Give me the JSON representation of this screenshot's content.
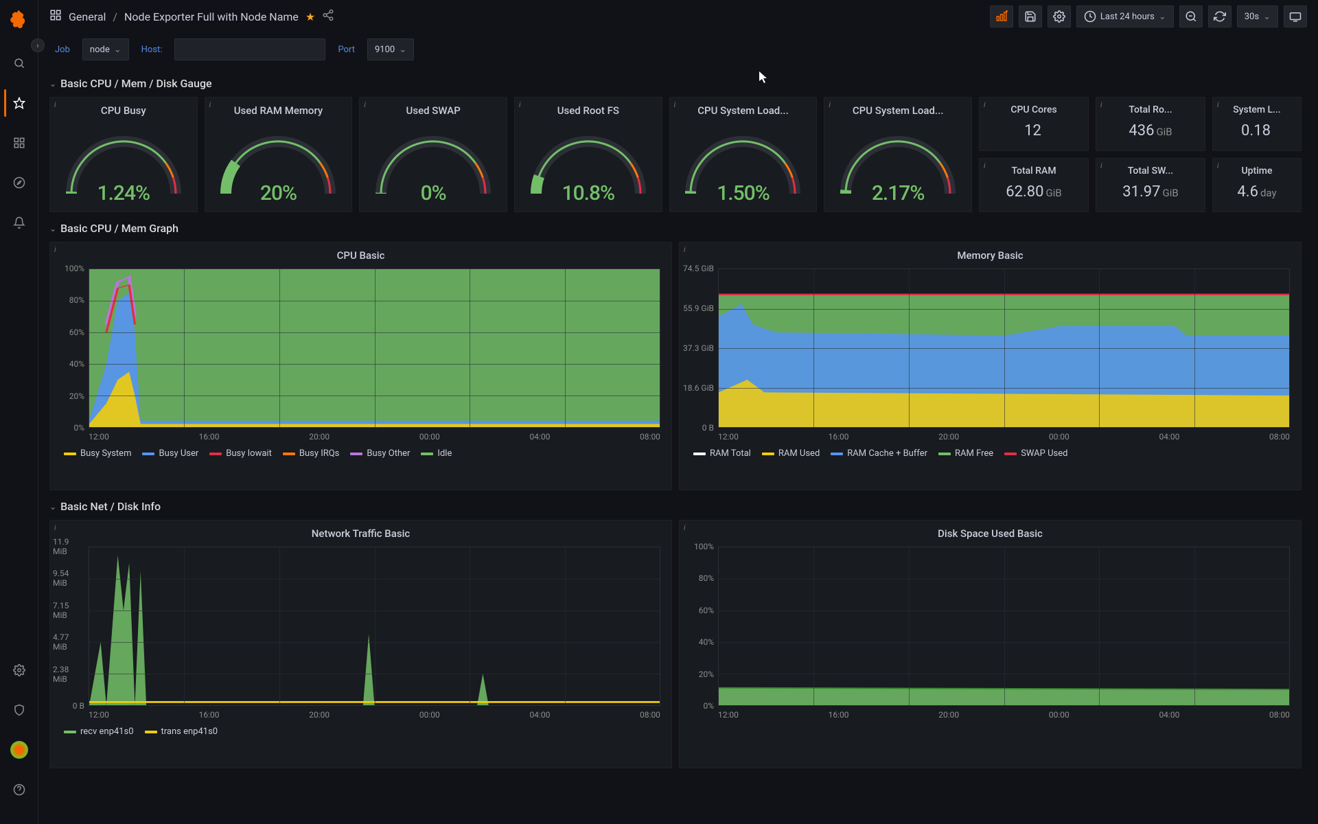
{
  "breadcrumb": {
    "folder": "General",
    "title": "Node Exporter Full with Node Name"
  },
  "toolbar": {
    "timerange": "Last 24 hours",
    "refresh": "30s"
  },
  "vars": {
    "job_label": "Job",
    "job_value": "node",
    "host_label": "Host:",
    "port_label": "Port",
    "port_value": "9100"
  },
  "colors": {
    "green": "#73bf69",
    "red": "#e02f44",
    "orange": "#ff780a",
    "yellow": "#f2cc0c",
    "blue": "#5794f2",
    "purple": "#b877d9",
    "white": "#ffffff",
    "darkgreen": "#37872d"
  },
  "rows": [
    {
      "title": "Basic CPU / Mem / Disk Gauge"
    },
    {
      "title": "Basic CPU / Mem Graph"
    },
    {
      "title": "Basic Net / Disk Info"
    }
  ],
  "gauges": [
    {
      "title": "CPU Busy",
      "value": "1.24%",
      "pct": 1.24,
      "color": "#73bf69"
    },
    {
      "title": "Used RAM Memory",
      "value": "20%",
      "pct": 20,
      "color": "#73bf69"
    },
    {
      "title": "Used SWAP",
      "value": "0%",
      "pct": 0,
      "color": "#73bf69"
    },
    {
      "title": "Used Root FS",
      "value": "10.8%",
      "pct": 10.8,
      "color": "#73bf69"
    },
    {
      "title": "CPU System Load...",
      "value": "1.50%",
      "pct": 1.5,
      "color": "#73bf69"
    },
    {
      "title": "CPU System Load...",
      "value": "2.17%",
      "pct": 2.17,
      "color": "#73bf69"
    }
  ],
  "stats": [
    {
      "title": "CPU Cores",
      "value": "12",
      "unit": ""
    },
    {
      "title": "Total Ro...",
      "value": "436",
      "unit": "GiB"
    },
    {
      "title": "System L...",
      "value": "0.18",
      "unit": ""
    },
    {
      "title": "Total RAM",
      "value": "62.80",
      "unit": "GiB"
    },
    {
      "title": "Total SW...",
      "value": "31.97",
      "unit": "GiB"
    },
    {
      "title": "Uptime",
      "value": "4.6",
      "unit": "day"
    }
  ],
  "cpu_chart": {
    "title": "CPU Basic",
    "yticks": [
      "100%",
      "80%",
      "60%",
      "40%",
      "20%",
      "0%"
    ],
    "xticks": [
      "12:00",
      "16:00",
      "20:00",
      "00:00",
      "04:00",
      "08:00"
    ],
    "legend": [
      {
        "label": "Busy System",
        "color": "#f2cc0c"
      },
      {
        "label": "Busy User",
        "color": "#5794f2"
      },
      {
        "label": "Busy Iowait",
        "color": "#e02f44"
      },
      {
        "label": "Busy IRQs",
        "color": "#ff780a"
      },
      {
        "label": "Busy Other",
        "color": "#b877d9"
      },
      {
        "label": "Idle",
        "color": "#73bf69"
      }
    ]
  },
  "mem_chart": {
    "title": "Memory Basic",
    "yticks": [
      "74.5 GiB",
      "55.9 GiB",
      "37.3 GiB",
      "18.6 GiB",
      "0 B"
    ],
    "xticks": [
      "12:00",
      "16:00",
      "20:00",
      "00:00",
      "04:00",
      "08:00"
    ],
    "legend": [
      {
        "label": "RAM Total",
        "color": "#ffffff"
      },
      {
        "label": "RAM Used",
        "color": "#f2cc0c"
      },
      {
        "label": "RAM Cache + Buffer",
        "color": "#5794f2"
      },
      {
        "label": "RAM Free",
        "color": "#73bf69"
      },
      {
        "label": "SWAP Used",
        "color": "#e02f44"
      }
    ]
  },
  "net_chart": {
    "title": "Network Traffic Basic",
    "yticks": [
      "11.9 MiB",
      "9.54 MiB",
      "7.15 MiB",
      "4.77 MiB",
      "2.38 MiB",
      "0 B"
    ],
    "xticks": [
      "12:00",
      "16:00",
      "20:00",
      "00:00",
      "04:00",
      "08:00"
    ],
    "legend": [
      {
        "label": "recv enp41s0",
        "color": "#73bf69"
      },
      {
        "label": "trans enp41s0",
        "color": "#f2cc0c"
      }
    ]
  },
  "disk_chart": {
    "title": "Disk Space Used Basic",
    "yticks": [
      "100%",
      "80%",
      "60%",
      "40%",
      "20%",
      "0%"
    ],
    "xticks": [
      "12:00",
      "16:00",
      "20:00",
      "00:00",
      "04:00",
      "08:00"
    ]
  }
}
